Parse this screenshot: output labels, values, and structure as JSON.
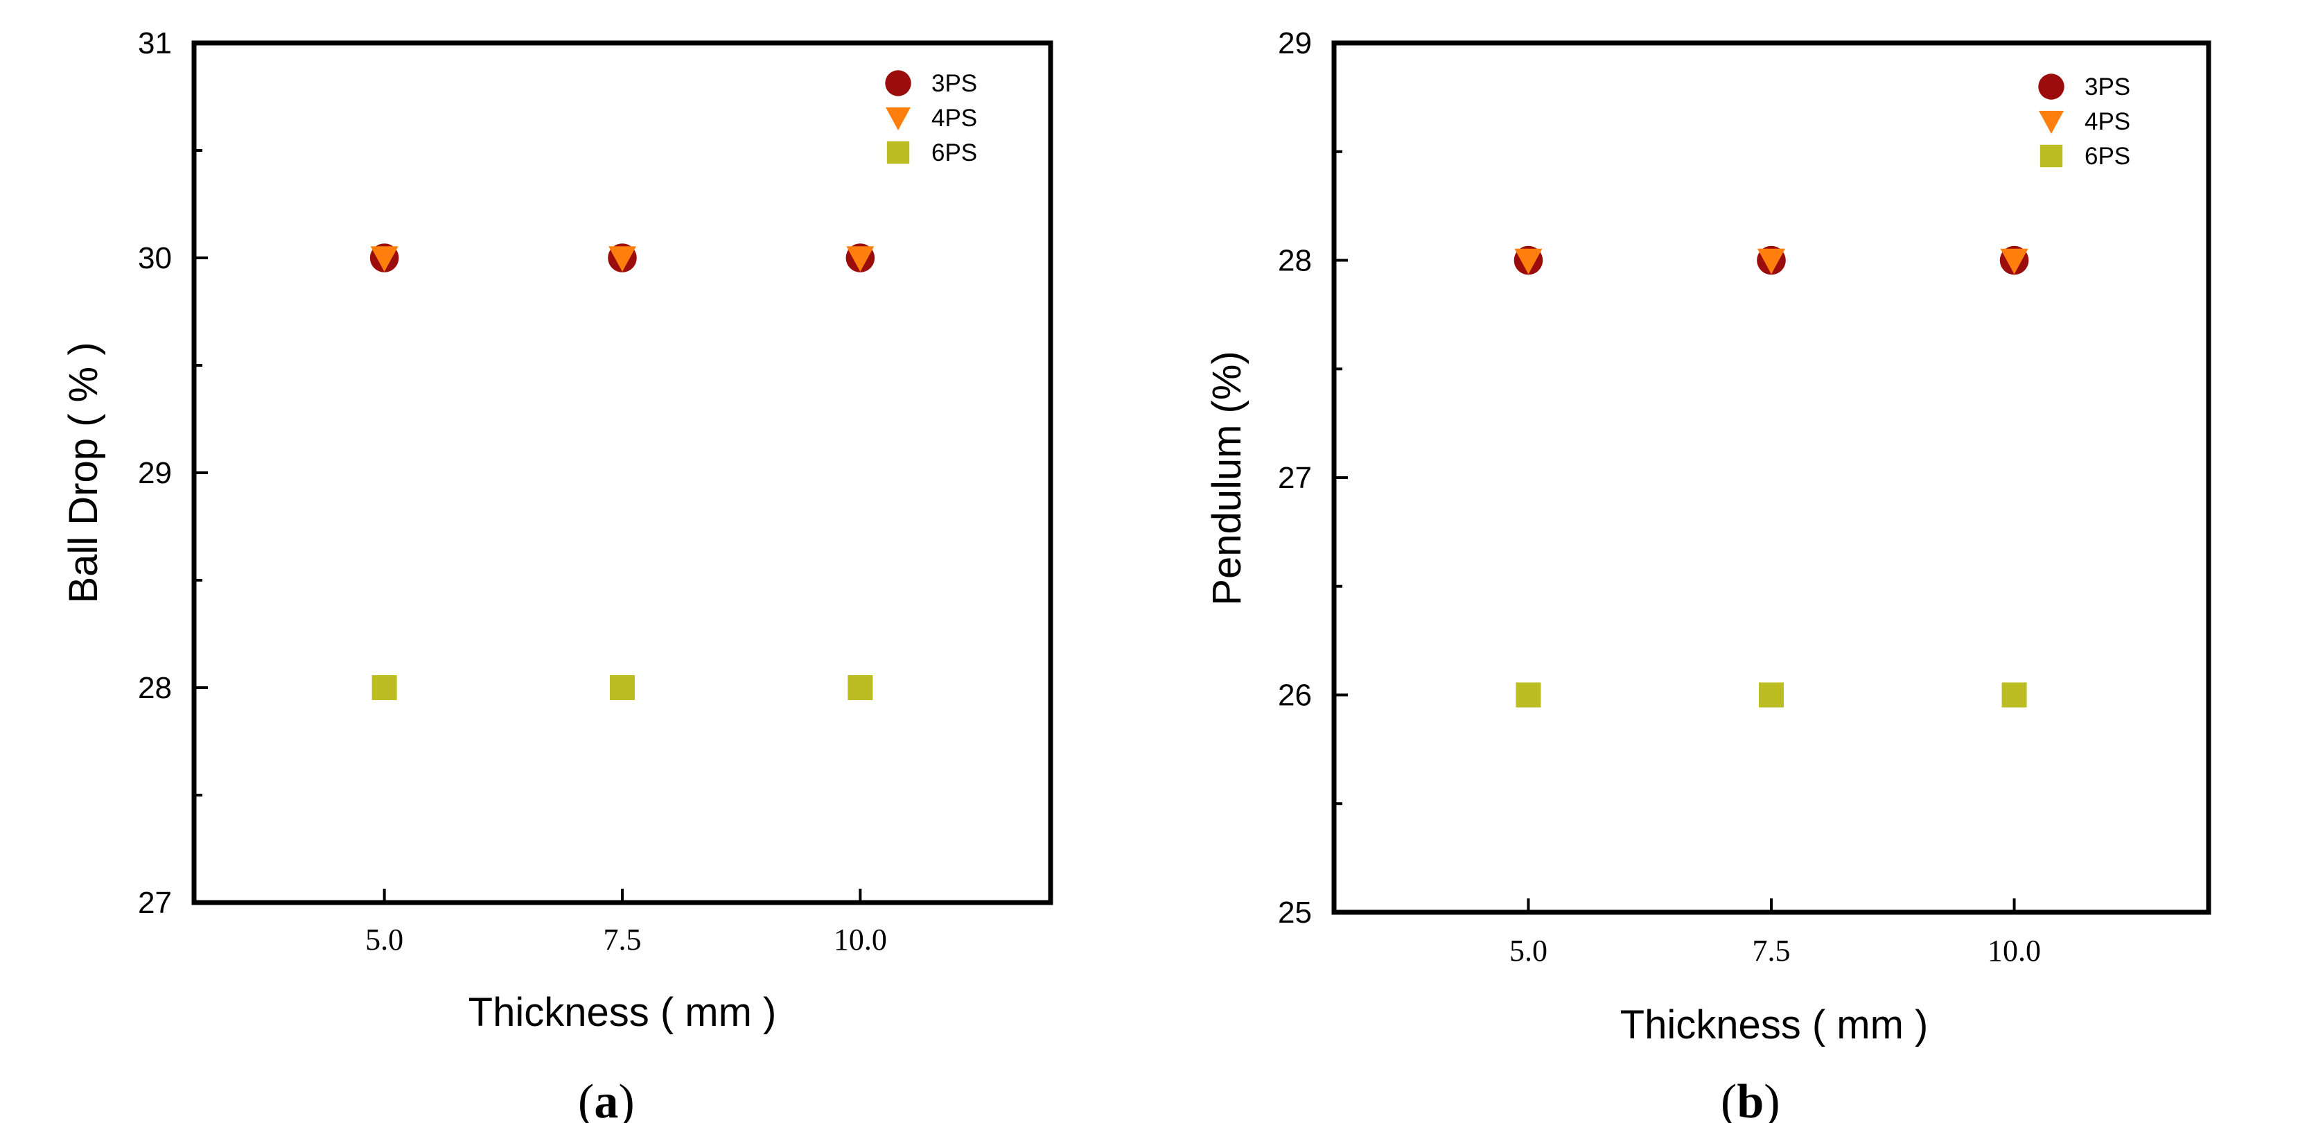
{
  "chart_data": [
    {
      "type": "scatter",
      "panel_label": "a",
      "xlabel": "Thickness ( mm )",
      "ylabel": "Ball Drop ( % )",
      "x": [
        5.0,
        7.5,
        10.0
      ],
      "x_tick_labels": [
        "5.0",
        "7.5",
        "10.0"
      ],
      "xlim": [
        3.0,
        12.0
      ],
      "ylim": [
        27,
        31
      ],
      "y_ticks": [
        27,
        28,
        29,
        30,
        31
      ],
      "y_tick_labels": [
        "27",
        "28",
        "29",
        "30",
        "31"
      ],
      "y_minor_step": 0.5,
      "legend_position": "top-right",
      "series": [
        {
          "name": "3PS",
          "marker": "circle",
          "color": "#9b0c0c",
          "values": [
            30,
            30,
            30
          ]
        },
        {
          "name": "4PS",
          "marker": "triangle-down",
          "color": "#ff7f0e",
          "values": [
            30,
            30,
            30
          ]
        },
        {
          "name": "6PS",
          "marker": "square",
          "color": "#bcbd22",
          "values": [
            28,
            28,
            28
          ]
        }
      ]
    },
    {
      "type": "scatter",
      "panel_label": "b",
      "xlabel": "Thickness ( mm )",
      "ylabel": "Pendulum (%)",
      "x": [
        5.0,
        7.5,
        10.0
      ],
      "x_tick_labels": [
        "5.0",
        "7.5",
        "10.0"
      ],
      "xlim": [
        3.0,
        12.0
      ],
      "ylim": [
        25,
        29
      ],
      "y_ticks": [
        25,
        26,
        27,
        28,
        29
      ],
      "y_tick_labels": [
        "25",
        "26",
        "27",
        "28",
        "29"
      ],
      "y_minor_step": 0.5,
      "legend_position": "top-right",
      "series": [
        {
          "name": "3PS",
          "marker": "circle",
          "color": "#9b0c0c",
          "values": [
            28,
            28,
            28
          ]
        },
        {
          "name": "4PS",
          "marker": "triangle-down",
          "color": "#ff7f0e",
          "values": [
            28,
            28,
            28
          ]
        },
        {
          "name": "6PS",
          "marker": "square",
          "color": "#bcbd22",
          "values": [
            26,
            26,
            26
          ]
        }
      ]
    }
  ]
}
